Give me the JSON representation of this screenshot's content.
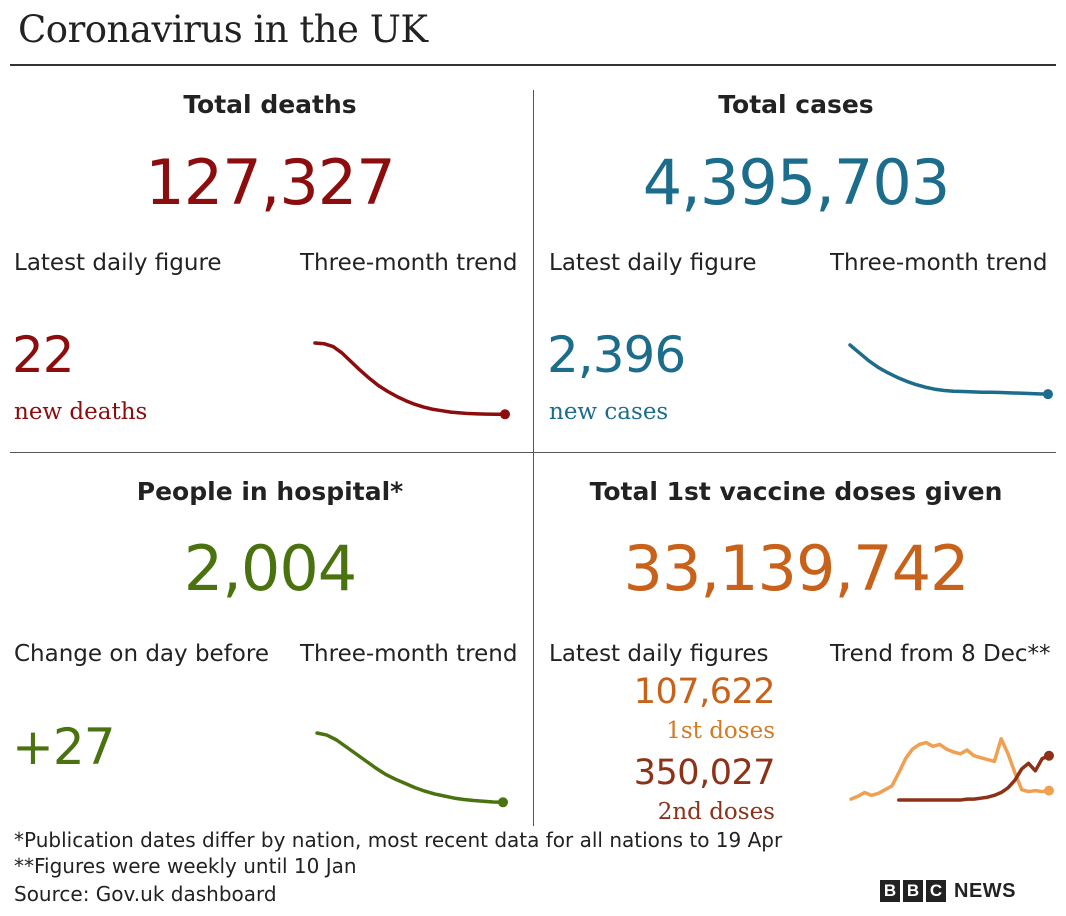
{
  "title": "Coronavirus in the UK",
  "colors": {
    "deaths": "#8c0d0d",
    "cases": "#1c6c8c",
    "hospital": "#4a7310",
    "vaccine_total": "#c8621a",
    "first_doses": "#f0a050",
    "second_doses": "#8c3218",
    "first_label": "#d47a20",
    "second_label": "#8c3218"
  },
  "deaths": {
    "heading": "Total deaths",
    "total": "127,327",
    "latest_label": "Latest daily figure",
    "trend_label": "Three-month trend",
    "daily_value": "22",
    "daily_caption": "new deaths"
  },
  "cases": {
    "heading": "Total cases",
    "total": "4,395,703",
    "latest_label": "Latest daily figure",
    "trend_label": "Three-month trend",
    "daily_value": "2,396",
    "daily_caption": "new cases"
  },
  "hospital": {
    "heading": "People in hospital*",
    "total": "2,004",
    "latest_label": "Change on day before",
    "trend_label": "Three-month trend",
    "daily_value": "+27"
  },
  "vaccine": {
    "heading": "Total 1st vaccine doses given",
    "total": "33,139,742",
    "latest_label": "Latest daily figures",
    "trend_label": "Trend from 8 Dec**",
    "first_value": "107,622",
    "first_caption": "1st doses",
    "second_value": "350,027",
    "second_caption": "2nd doses"
  },
  "footnotes": {
    "note1": "*Publication dates differ by nation, most recent data for all nations to 19 Apr",
    "note2": "**Figures were weekly until 10 Jan",
    "source": "Source: Gov.uk dashboard"
  },
  "logo": {
    "letters": [
      "B",
      "B",
      "C"
    ],
    "news": "NEWS"
  },
  "chart_data": [
    {
      "type": "line",
      "series": [
        {
          "values": [
            100,
            99,
            95,
            86,
            74,
            62,
            51,
            41,
            33,
            26,
            20,
            15,
            11,
            8,
            6,
            4,
            3,
            2,
            1.5,
            1.2,
            1.1,
            1
          ]
        }
      ],
      "end_marker": true
    },
    {
      "type": "line",
      "series": [
        {
          "values": [
            100,
            88,
            76,
            66,
            58,
            51,
            45,
            40,
            36,
            33,
            31,
            30,
            29.5,
            29,
            28.5,
            28.5,
            28,
            27.5,
            27,
            26.5,
            26,
            25.5
          ]
        }
      ],
      "end_marker": true
    },
    {
      "type": "line",
      "series": [
        {
          "values": [
            100,
            97,
            90,
            80,
            70,
            60,
            50,
            41,
            34,
            28,
            22,
            17,
            13,
            10,
            7,
            5,
            3.5,
            2.5,
            1.5,
            1
          ]
        }
      ],
      "end_marker": true
    },
    {
      "type": "line",
      "series": [
        {
          "values": [
            2,
            5,
            9,
            6,
            8,
            12,
            16,
            30,
            45,
            55,
            60,
            62,
            58,
            60,
            55,
            52,
            50,
            54,
            48,
            46,
            44,
            42,
            66,
            50,
            30,
            12,
            10,
            11,
            10,
            11
          ]
        },
        {
          "values": [
            null,
            null,
            null,
            null,
            null,
            null,
            null,
            1,
            1,
            1,
            1,
            1,
            1,
            1,
            1,
            1,
            1,
            2,
            2,
            3,
            4,
            6,
            9,
            14,
            22,
            34,
            40,
            32,
            45,
            48
          ]
        }
      ],
      "end_marker": true
    }
  ]
}
